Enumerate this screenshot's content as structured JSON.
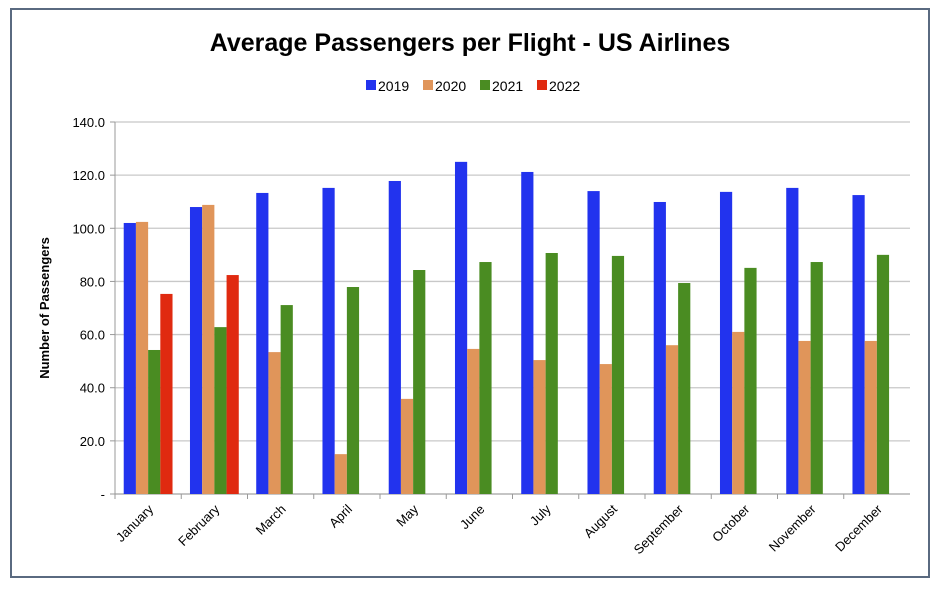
{
  "chart_data": {
    "type": "bar",
    "title": "Average Passengers per Flight - US Airlines",
    "xlabel": "",
    "ylabel": "Number of Passengers",
    "ylim": [
      0,
      140
    ],
    "yticks": [
      0,
      20,
      40,
      60,
      80,
      100,
      120,
      140
    ],
    "ytick_labels": [
      "-",
      "20.0",
      "40.0",
      "60.0",
      "80.0",
      "100.0",
      "120.0",
      "140.0"
    ],
    "grid": true,
    "legend_position": "top-center",
    "categories": [
      "January",
      "February",
      "March",
      "April",
      "May",
      "June",
      "July",
      "August",
      "September",
      "October",
      "November",
      "December"
    ],
    "series": [
      {
        "name": "2019",
        "color": "#2233ee",
        "values": [
          102.0,
          108.0,
          113.3,
          115.2,
          117.8,
          125.0,
          121.2,
          114.0,
          109.9,
          113.7,
          115.2,
          112.5
        ]
      },
      {
        "name": "2020",
        "color": "#e0955a",
        "values": [
          102.4,
          108.8,
          53.4,
          15.0,
          35.8,
          54.6,
          50.4,
          48.9,
          56.0,
          61.0,
          57.6,
          57.6
        ]
      },
      {
        "name": "2021",
        "color": "#4a8c22",
        "values": [
          54.2,
          62.8,
          71.1,
          77.9,
          84.3,
          87.3,
          90.7,
          89.6,
          79.4,
          85.1,
          87.3,
          90.0
        ]
      },
      {
        "name": "2022",
        "color": "#e02a10",
        "values": [
          75.3,
          82.4,
          null,
          null,
          null,
          null,
          null,
          null,
          null,
          null,
          null,
          null
        ]
      }
    ]
  }
}
